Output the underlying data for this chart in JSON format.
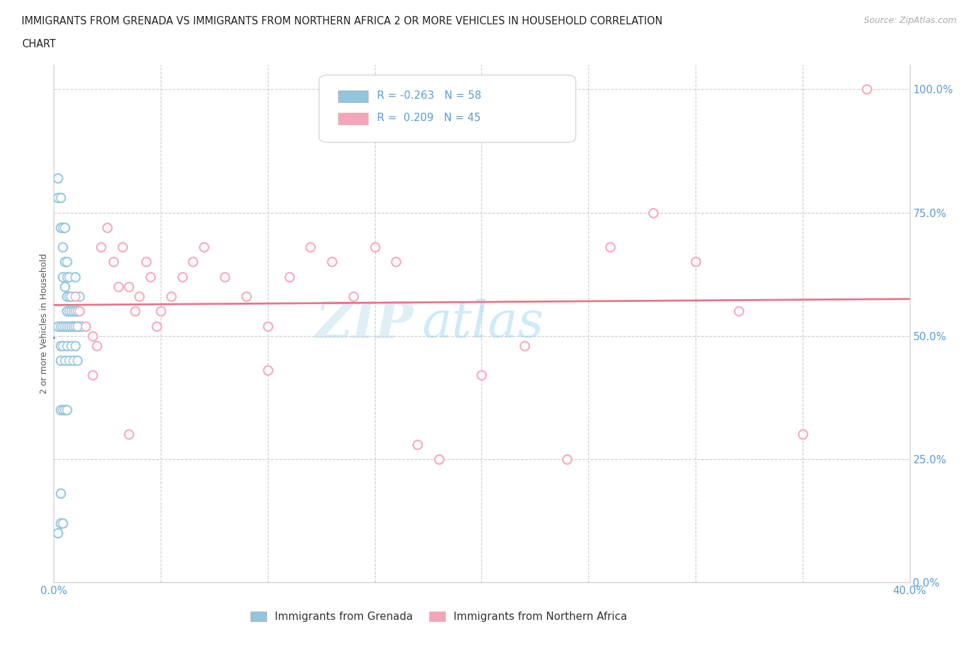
{
  "title_line1": "IMMIGRANTS FROM GRENADA VS IMMIGRANTS FROM NORTHERN AFRICA 2 OR MORE VEHICLES IN HOUSEHOLD CORRELATION",
  "title_line2": "CHART",
  "source": "Source: ZipAtlas.com",
  "ylabel": "2 or more Vehicles in Household",
  "xlim": [
    0.0,
    0.4
  ],
  "ylim": [
    0.0,
    1.05
  ],
  "grenada_color": "#92c5de",
  "northern_africa_color": "#f4a6b8",
  "grenada_line_color": "#2166ac",
  "na_line_color": "#e8748a",
  "tick_color": "#5b9bd5",
  "bottom_legend_grenada": "Immigrants from Grenada",
  "bottom_legend_na": "Immigrants from Northern Africa",
  "watermark_zip": "ZIP",
  "watermark_atlas": "atlas",
  "grenada_x": [
    0.002,
    0.002,
    0.003,
    0.003,
    0.004,
    0.004,
    0.004,
    0.005,
    0.005,
    0.005,
    0.006,
    0.006,
    0.006,
    0.006,
    0.007,
    0.007,
    0.007,
    0.008,
    0.008,
    0.008,
    0.009,
    0.009,
    0.01,
    0.01,
    0.01,
    0.011,
    0.011,
    0.012,
    0.012,
    0.013,
    0.002,
    0.003,
    0.004,
    0.005,
    0.006,
    0.007,
    0.008,
    0.009,
    0.01,
    0.011,
    0.003,
    0.003,
    0.004,
    0.005,
    0.006,
    0.007,
    0.008,
    0.009,
    0.01,
    0.011,
    0.003,
    0.004,
    0.005,
    0.006,
    0.003,
    0.003,
    0.004,
    0.002
  ],
  "grenada_y": [
    0.82,
    0.78,
    0.78,
    0.72,
    0.68,
    0.62,
    0.72,
    0.65,
    0.6,
    0.72,
    0.62,
    0.58,
    0.55,
    0.65,
    0.58,
    0.55,
    0.62,
    0.58,
    0.52,
    0.55,
    0.52,
    0.55,
    0.52,
    0.55,
    0.62,
    0.55,
    0.52,
    0.52,
    0.58,
    0.52,
    0.52,
    0.52,
    0.52,
    0.52,
    0.52,
    0.52,
    0.52,
    0.52,
    0.52,
    0.52,
    0.48,
    0.45,
    0.48,
    0.45,
    0.48,
    0.45,
    0.48,
    0.45,
    0.48,
    0.45,
    0.35,
    0.35,
    0.35,
    0.35,
    0.18,
    0.12,
    0.12,
    0.1
  ],
  "na_x": [
    0.01,
    0.012,
    0.015,
    0.018,
    0.02,
    0.022,
    0.025,
    0.028,
    0.03,
    0.032,
    0.035,
    0.038,
    0.04,
    0.043,
    0.045,
    0.048,
    0.05,
    0.055,
    0.06,
    0.065,
    0.07,
    0.08,
    0.09,
    0.1,
    0.11,
    0.12,
    0.13,
    0.14,
    0.15,
    0.16,
    0.17,
    0.18,
    0.2,
    0.22,
    0.24,
    0.26,
    0.28,
    0.3,
    0.32,
    0.35,
    0.018,
    0.035,
    0.1,
    0.38
  ],
  "na_y": [
    0.58,
    0.55,
    0.52,
    0.5,
    0.48,
    0.68,
    0.72,
    0.65,
    0.6,
    0.68,
    0.6,
    0.55,
    0.58,
    0.65,
    0.62,
    0.52,
    0.55,
    0.58,
    0.62,
    0.65,
    0.68,
    0.62,
    0.58,
    0.52,
    0.62,
    0.68,
    0.65,
    0.58,
    0.68,
    0.65,
    0.28,
    0.25,
    0.42,
    0.48,
    0.25,
    0.68,
    0.75,
    0.65,
    0.55,
    0.3,
    0.42,
    0.3,
    0.43,
    1.0
  ]
}
